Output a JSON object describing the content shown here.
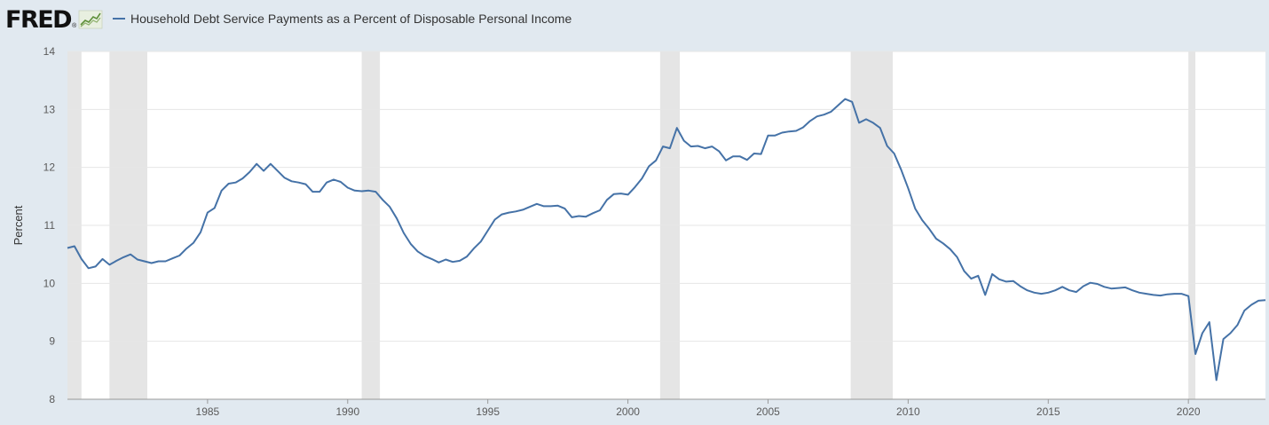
{
  "brand": {
    "logo_text": "FRED",
    "registered_mark": "®",
    "logo_icon": "chart-line-icon"
  },
  "colors": {
    "page_background": "#e1e9f0",
    "plot_background": "#ffffff",
    "series_line": "#4572a7",
    "recession_shade": "#e5e5e5",
    "grid": "#e6e6e6"
  },
  "chart_data": {
    "type": "line",
    "title": "",
    "xlabel": "",
    "ylabel": "Percent",
    "xlim": [
      1980.0,
      2022.75
    ],
    "ylim": [
      8,
      14
    ],
    "grid": true,
    "legend_placement": "top-left",
    "y_ticks": [
      8,
      9,
      10,
      11,
      12,
      13,
      14
    ],
    "x_ticks": [
      1985,
      1990,
      1995,
      2000,
      2005,
      2010,
      2015,
      2020
    ],
    "recessions": [
      [
        1980.0,
        1980.5
      ],
      [
        1981.5,
        1982.85
      ],
      [
        1990.5,
        1991.15
      ],
      [
        2001.15,
        2001.85
      ],
      [
        2007.95,
        2009.45
      ],
      [
        2020.0,
        2020.25
      ]
    ],
    "series": [
      {
        "name": "Household Debt Service Payments as a Percent of Disposable Personal Income",
        "x": [
          1980.0,
          1980.25,
          1980.5,
          1980.75,
          1981.0,
          1981.25,
          1981.5,
          1981.75,
          1982.0,
          1982.25,
          1982.5,
          1982.75,
          1983.0,
          1983.25,
          1983.5,
          1983.75,
          1984.0,
          1984.25,
          1984.5,
          1984.75,
          1985.0,
          1985.25,
          1985.5,
          1985.75,
          1986.0,
          1986.25,
          1986.5,
          1986.75,
          1987.0,
          1987.25,
          1987.5,
          1987.75,
          1988.0,
          1988.25,
          1988.5,
          1988.75,
          1989.0,
          1989.25,
          1989.5,
          1989.75,
          1990.0,
          1990.25,
          1990.5,
          1990.75,
          1991.0,
          1991.25,
          1991.5,
          1991.75,
          1992.0,
          1992.25,
          1992.5,
          1992.75,
          1993.0,
          1993.25,
          1993.5,
          1993.75,
          1994.0,
          1994.25,
          1994.5,
          1994.75,
          1995.0,
          1995.25,
          1995.5,
          1995.75,
          1996.0,
          1996.25,
          1996.5,
          1996.75,
          1997.0,
          1997.25,
          1997.5,
          1997.75,
          1998.0,
          1998.25,
          1998.5,
          1998.75,
          1999.0,
          1999.25,
          1999.5,
          1999.75,
          2000.0,
          2000.25,
          2000.5,
          2000.75,
          2001.0,
          2001.25,
          2001.5,
          2001.75,
          2002.0,
          2002.25,
          2002.5,
          2002.75,
          2003.0,
          2003.25,
          2003.5,
          2003.75,
          2004.0,
          2004.25,
          2004.5,
          2004.75,
          2005.0,
          2005.25,
          2005.5,
          2005.75,
          2006.0,
          2006.25,
          2006.5,
          2006.75,
          2007.0,
          2007.25,
          2007.5,
          2007.75,
          2008.0,
          2008.25,
          2008.5,
          2008.75,
          2009.0,
          2009.25,
          2009.5,
          2009.75,
          2010.0,
          2010.25,
          2010.5,
          2010.75,
          2011.0,
          2011.25,
          2011.5,
          2011.75,
          2012.0,
          2012.25,
          2012.5,
          2012.75,
          2013.0,
          2013.25,
          2013.5,
          2013.75,
          2014.0,
          2014.25,
          2014.5,
          2014.75,
          2015.0,
          2015.25,
          2015.5,
          2015.75,
          2016.0,
          2016.25,
          2016.5,
          2016.75,
          2017.0,
          2017.25,
          2017.5,
          2017.75,
          2018.0,
          2018.25,
          2018.5,
          2018.75,
          2019.0,
          2019.25,
          2019.5,
          2019.75,
          2020.0,
          2020.25,
          2020.5,
          2020.75,
          2021.0,
          2021.25,
          2021.5,
          2021.75,
          2022.0,
          2022.25,
          2022.5,
          2022.75
        ],
        "values": [
          10.61,
          10.64,
          10.42,
          10.26,
          10.29,
          10.42,
          10.32,
          10.39,
          10.45,
          10.5,
          10.41,
          10.38,
          10.35,
          10.38,
          10.38,
          10.43,
          10.48,
          10.6,
          10.7,
          10.88,
          11.22,
          11.3,
          11.6,
          11.72,
          11.74,
          11.81,
          11.92,
          12.06,
          11.94,
          12.06,
          11.94,
          11.82,
          11.76,
          11.74,
          11.71,
          11.58,
          11.58,
          11.74,
          11.79,
          11.75,
          11.65,
          11.6,
          11.59,
          11.6,
          11.58,
          11.44,
          11.32,
          11.12,
          10.87,
          10.68,
          10.55,
          10.47,
          10.42,
          10.36,
          10.41,
          10.37,
          10.39,
          10.46,
          10.6,
          10.72,
          10.91,
          11.1,
          11.19,
          11.22,
          11.24,
          11.27,
          11.32,
          11.37,
          11.33,
          11.33,
          11.34,
          11.29,
          11.14,
          11.16,
          11.15,
          11.21,
          11.26,
          11.44,
          11.54,
          11.55,
          11.53,
          11.66,
          11.81,
          12.02,
          12.12,
          12.36,
          12.33,
          12.68,
          12.46,
          12.36,
          12.37,
          12.33,
          12.36,
          12.28,
          12.12,
          12.19,
          12.19,
          12.13,
          12.24,
          12.23,
          12.55,
          12.55,
          12.6,
          12.62,
          12.63,
          12.69,
          12.8,
          12.88,
          12.91,
          12.96,
          13.07,
          13.18,
          13.13,
          12.77,
          12.83,
          12.77,
          12.68,
          12.37,
          12.24,
          11.96,
          11.64,
          11.29,
          11.09,
          10.94,
          10.77,
          10.69,
          10.59,
          10.45,
          10.21,
          10.08,
          10.13,
          9.8,
          10.16,
          10.07,
          10.03,
          10.04,
          9.95,
          9.88,
          9.84,
          9.82,
          9.84,
          9.88,
          9.94,
          9.88,
          9.85,
          9.95,
          10.01,
          9.99,
          9.94,
          9.91,
          9.92,
          9.93,
          9.88,
          9.84,
          9.82,
          9.8,
          9.79,
          9.81,
          9.82,
          9.82,
          9.78,
          8.78,
          9.14,
          9.33,
          8.33,
          9.04,
          9.14,
          9.28,
          9.53,
          9.63,
          9.7,
          9.71
        ]
      }
    ]
  }
}
